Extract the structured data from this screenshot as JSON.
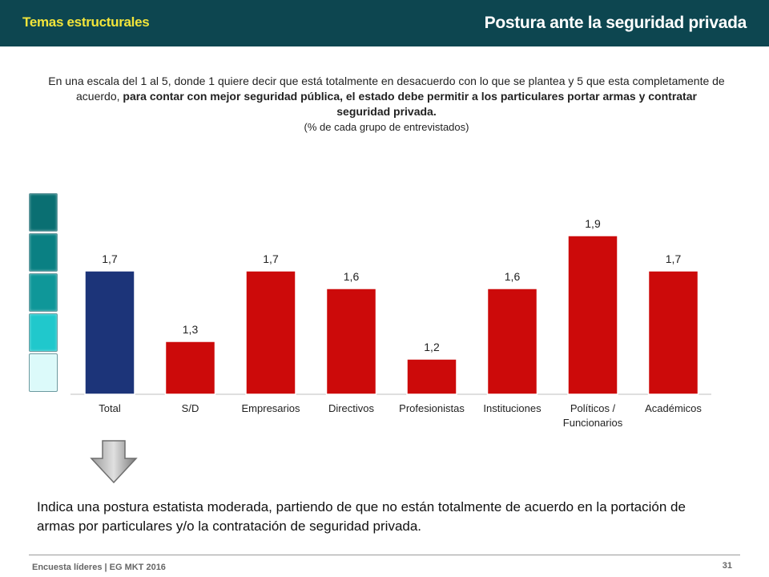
{
  "header": {
    "section": "Temas estructurales",
    "title": "Postura ante la seguridad privada"
  },
  "question": {
    "intro": "En una escala del 1 al 5, donde 1 quiere decir que está totalmente en desacuerdo con lo que se plantea y 5 que esta completamente de acuerdo,",
    "emphasis": "para contar con mejor seguridad pública, el estado debe permitir a los particulares portar armas y contratar seguridad privada.",
    "note": "(% de cada grupo de entrevistados)"
  },
  "scale": {
    "colors": [
      "#0a6f72",
      "#0a8083",
      "#0f9799",
      "#20c8cc",
      "#dcfafa"
    ]
  },
  "chart_data": {
    "type": "bar",
    "categories": [
      "Total",
      "S/D",
      "Empresarios",
      "Directivos",
      "Profesionistas",
      "Instituciones",
      "Políticos / Funcionarios",
      "Académicos"
    ],
    "values": [
      1.7,
      1.3,
      1.7,
      1.6,
      1.2,
      1.6,
      1.9,
      1.7
    ],
    "value_labels": [
      "1,7",
      "1,3",
      "1,7",
      "1,6",
      "1,2",
      "1,6",
      "1,9",
      "1,7"
    ],
    "colors": [
      "#1c3479",
      "#cc0a0a",
      "#cc0a0a",
      "#cc0a0a",
      "#cc0a0a",
      "#cc0a0a",
      "#cc0a0a",
      "#cc0a0a"
    ],
    "ylim": [
      1,
      5
    ],
    "grid": false,
    "legend": "none"
  },
  "conclusion": "Indica una postura estatista moderada, partiendo de que no están totalmente de acuerdo en la portación de armas por particulares y/o la contratación de seguridad privada.",
  "footer": {
    "source": "Encuesta líderes | EG MKT 2016",
    "page": "31"
  }
}
